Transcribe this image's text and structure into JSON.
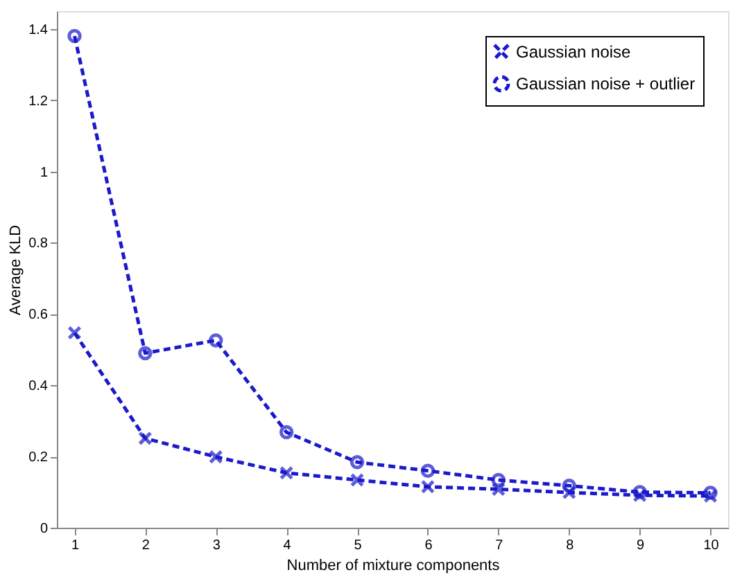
{
  "chart_data": {
    "type": "line",
    "xlabel": "Number of mixture components",
    "ylabel": "Average KLD",
    "x": [
      1,
      2,
      3,
      4,
      5,
      6,
      7,
      8,
      9,
      10
    ],
    "series": [
      {
        "name": "Gaussian noise",
        "color": "#1a1acc",
        "marker": "cross",
        "values": [
          0.547,
          0.251,
          0.199,
          0.154,
          0.134,
          0.115,
          0.108,
          0.099,
          0.091,
          0.089
        ]
      },
      {
        "name": "Gaussian noise + outlier",
        "color": "#1a1acc",
        "marker": "circle",
        "values": [
          1.38,
          0.49,
          0.526,
          0.268,
          0.184,
          0.16,
          0.134,
          0.118,
          0.1,
          0.098
        ]
      }
    ],
    "xlim": [
      0.75,
      10.25
    ],
    "xticks": [
      1,
      2,
      3,
      4,
      5,
      6,
      7,
      8,
      9,
      10
    ],
    "ylim": [
      0,
      1.45
    ],
    "yticks": [
      0,
      0.2,
      0.4,
      0.6,
      0.8,
      1,
      1.2,
      1.4
    ],
    "line_style": "dashed",
    "grid": false,
    "legend": "top right"
  }
}
